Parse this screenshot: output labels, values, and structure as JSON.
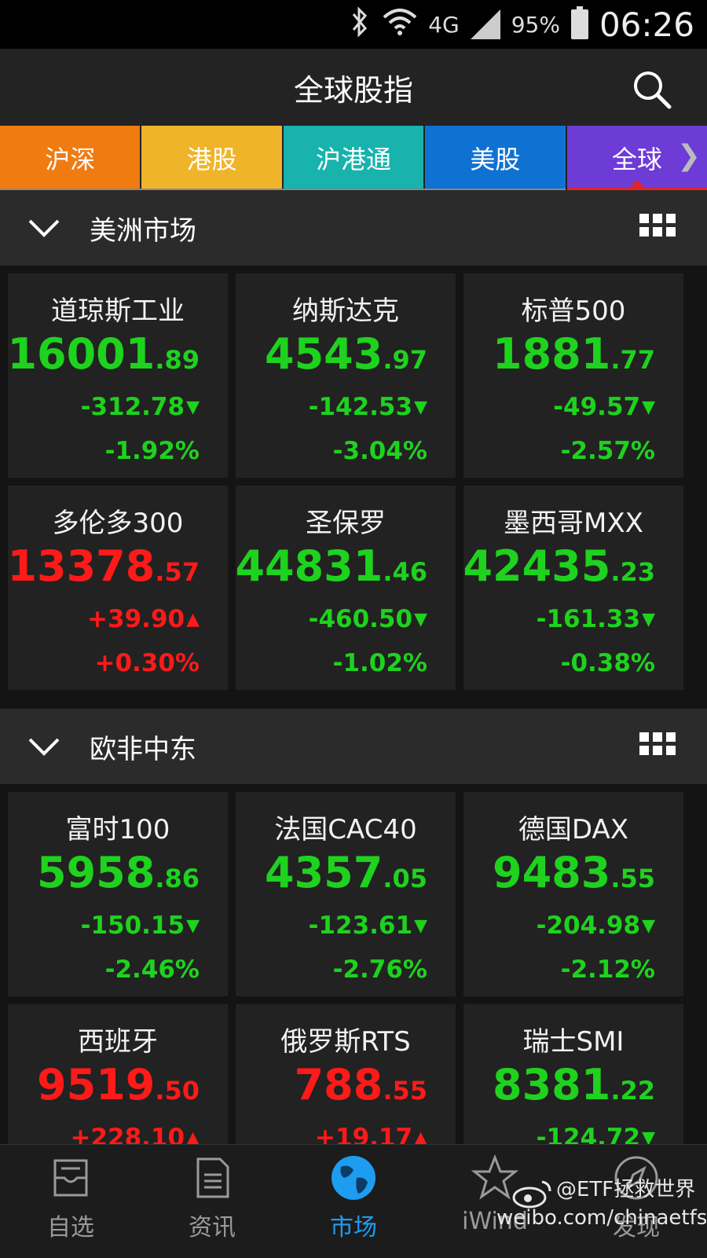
{
  "status_bar": {
    "network": "4G",
    "battery": "95%",
    "time": "06:26",
    "icons": [
      "bluetooth-icon",
      "wifi-icon",
      "signal-icon",
      "battery-icon"
    ]
  },
  "header": {
    "title": "全球股指",
    "search_icon": "search-icon"
  },
  "tabs": [
    {
      "label": "沪深",
      "color": "#f07b10"
    },
    {
      "label": "港股",
      "color": "#f0b42a"
    },
    {
      "label": "沪港通",
      "color": "#18b3ac"
    },
    {
      "label": "美股",
      "color": "#0f72d3"
    },
    {
      "label": "全球",
      "color": "#6d3bd6",
      "active": true
    }
  ],
  "colors": {
    "up": "#ff1a1a",
    "down": "#1ed21e",
    "accent": "#1e9cf0",
    "active_underline": "#e0242b"
  },
  "sections": [
    {
      "title": "美洲市场",
      "cards": [
        {
          "name": "道琼斯工业",
          "int": "16001",
          "dec": ".89",
          "change": "-312.78",
          "pct": "-1.92%",
          "dir": "down"
        },
        {
          "name": "纳斯达克",
          "int": "4543",
          "dec": ".97",
          "change": "-142.53",
          "pct": "-3.04%",
          "dir": "down"
        },
        {
          "name": "标普500",
          "int": "1881",
          "dec": ".77",
          "change": "-49.57",
          "pct": "-2.57%",
          "dir": "down"
        },
        {
          "name": "多伦多300",
          "int": "13378",
          "dec": ".57",
          "change": "+39.90",
          "pct": "+0.30%",
          "dir": "up"
        },
        {
          "name": "圣保罗",
          "int": "44831",
          "dec": ".46",
          "change": "-460.50",
          "pct": "-1.02%",
          "dir": "down"
        },
        {
          "name": "墨西哥MXX",
          "int": "42435",
          "dec": ".23",
          "change": "-161.33",
          "pct": "-0.38%",
          "dir": "down"
        }
      ]
    },
    {
      "title": "欧非中东",
      "cards": [
        {
          "name": "富时100",
          "int": "5958",
          "dec": ".86",
          "change": "-150.15",
          "pct": "-2.46%",
          "dir": "down"
        },
        {
          "name": "法国CAC40",
          "int": "4357",
          "dec": ".05",
          "change": "-123.61",
          "pct": "-2.76%",
          "dir": "down"
        },
        {
          "name": "德国DAX",
          "int": "9483",
          "dec": ".55",
          "change": "-204.98",
          "pct": "-2.12%",
          "dir": "down"
        },
        {
          "name": "西班牙",
          "int": "9519",
          "dec": ".50",
          "change": "+228.10",
          "pct": "",
          "dir": "up"
        },
        {
          "name": "俄罗斯RTS",
          "int": "788",
          "dec": ".55",
          "change": "+19.17",
          "pct": "",
          "dir": "up"
        },
        {
          "name": "瑞士SMI",
          "int": "8381",
          "dec": ".22",
          "change": "-124.72",
          "pct": "",
          "dir": "down"
        }
      ]
    }
  ],
  "bottom_nav": [
    {
      "label": "自选",
      "icon": "inbox-icon"
    },
    {
      "label": "资讯",
      "icon": "document-icon"
    },
    {
      "label": "市场",
      "icon": "globe-icon",
      "active": true
    },
    {
      "label": "iWind",
      "icon": "star-icon"
    },
    {
      "label": "发现",
      "icon": "compass-icon"
    }
  ],
  "watermark": {
    "line1": "@ETF拯救世界",
    "line2": "weibo.com/chinaetfs"
  }
}
